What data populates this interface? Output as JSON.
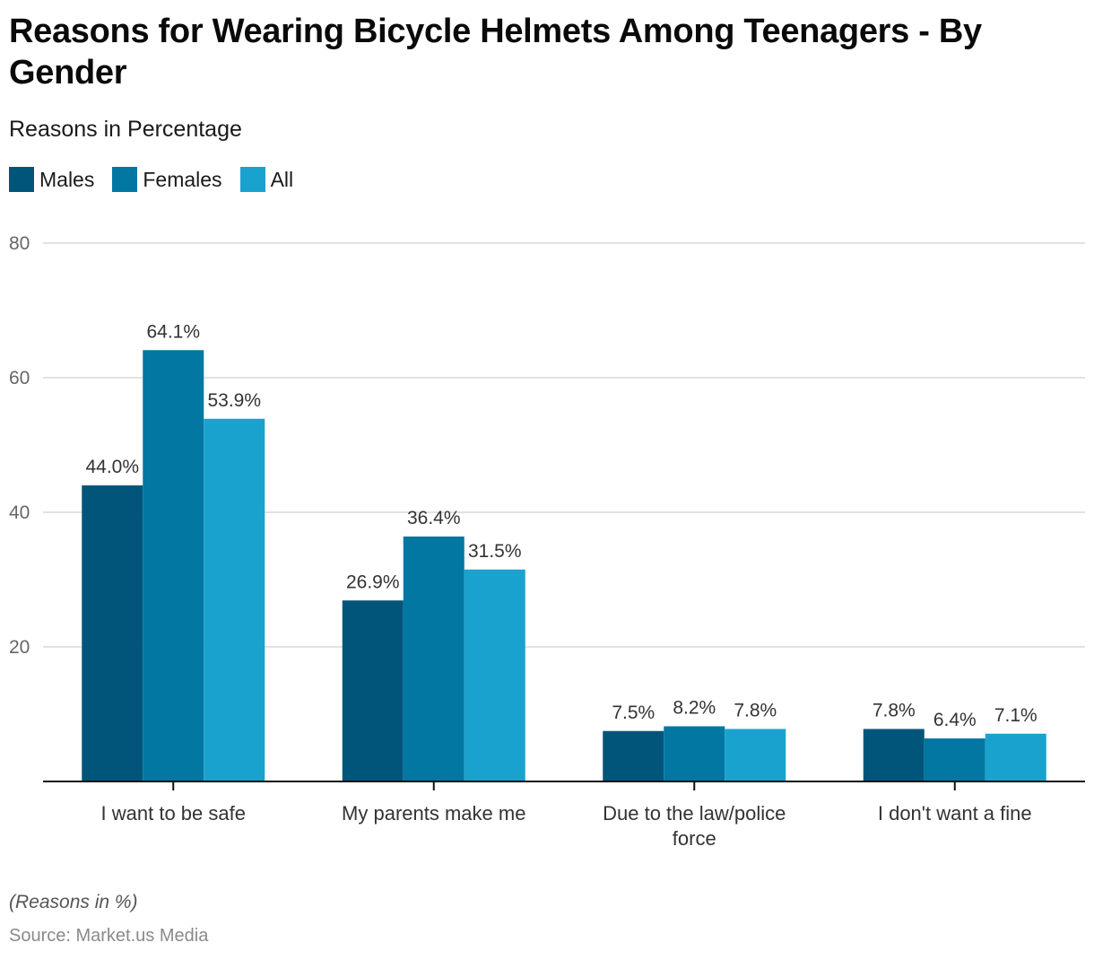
{
  "chart_data": {
    "type": "bar",
    "title": "Reasons for Wearing Bicycle Helmets Among Teenagers - By Gender",
    "subtitle": "Reasons in Percentage",
    "xlabel": "",
    "ylabel": "",
    "ylim": [
      0,
      80
    ],
    "yticks": [
      20,
      40,
      60,
      80
    ],
    "grid": true,
    "legend_position": "top-left",
    "categories": [
      [
        "I want to be safe"
      ],
      [
        "My parents make me"
      ],
      [
        "Due to the law/police",
        "force"
      ],
      [
        "I don't want a fine"
      ]
    ],
    "series": [
      {
        "name": "Males",
        "color": "#01557b",
        "values": [
          44.0,
          26.9,
          7.5,
          7.8
        ],
        "labels": [
          "44.0%",
          "26.9%",
          "7.5%",
          "7.8%"
        ]
      },
      {
        "name": "Females",
        "color": "#0277a2",
        "values": [
          64.1,
          36.4,
          8.2,
          6.4
        ],
        "labels": [
          "64.1%",
          "36.4%",
          "8.2%",
          "6.4%"
        ]
      },
      {
        "name": "All",
        "color": "#1aa2ce",
        "values": [
          53.9,
          31.5,
          7.8,
          7.1
        ],
        "labels": [
          "53.9%",
          "31.5%",
          "7.8%",
          "7.1%"
        ]
      }
    ],
    "note": "(Reasons in %)",
    "source": "Source: Market.us Media"
  }
}
